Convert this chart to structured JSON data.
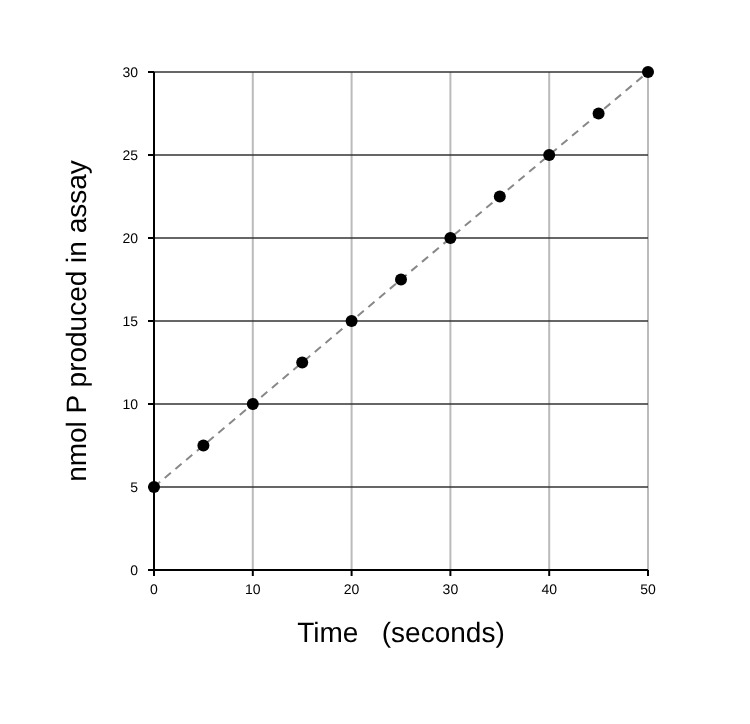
{
  "chart_data": {
    "type": "scatter",
    "xlabel": "Time   (seconds)",
    "ylabel": "nmol P produced in assay",
    "xlim": [
      0,
      50
    ],
    "ylim": [
      0,
      30
    ],
    "xticks": [
      0,
      10,
      20,
      30,
      40,
      50
    ],
    "yticks": [
      0,
      5,
      10,
      15,
      20,
      25,
      30
    ],
    "grid": true,
    "series": [
      {
        "type": "line",
        "color": "#888888",
        "line_style": "dashed",
        "marker": "none",
        "x": [
          0,
          50
        ],
        "values": [
          5,
          30
        ]
      },
      {
        "color": "#000000",
        "marker": "circle",
        "x": [
          0,
          5,
          10,
          15,
          20,
          25,
          30,
          35,
          40,
          45,
          50
        ],
        "values": [
          5,
          7.5,
          10,
          12.5,
          15,
          17.5,
          20,
          22.5,
          25,
          27.5,
          30
        ]
      }
    ]
  }
}
